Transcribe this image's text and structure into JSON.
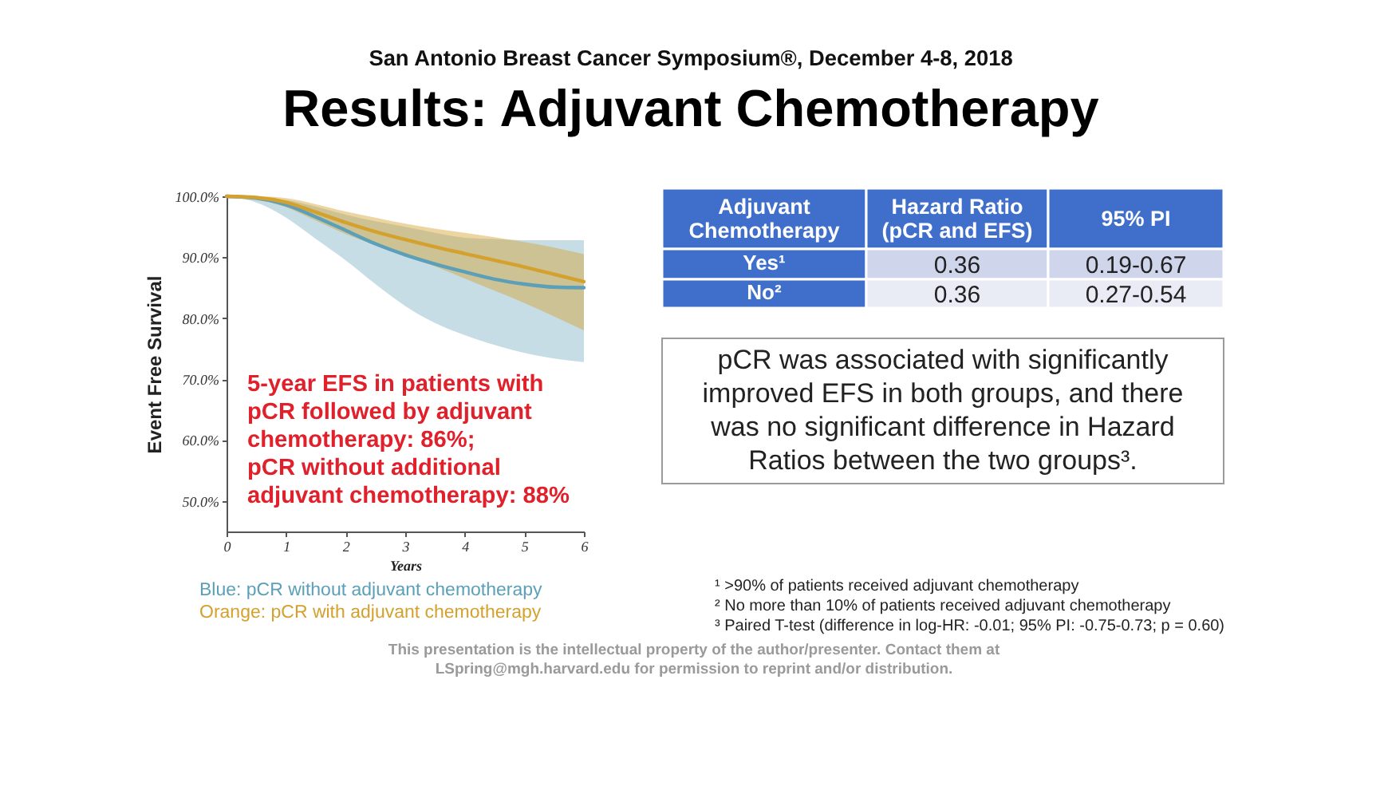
{
  "chart_data": [
    {
      "type": "line",
      "title": "Results: Adjuvant Chemotherapy",
      "subtitle": "San Antonio Breast Cancer Symposium®, December 4-8, 2018",
      "xlabel": "Years",
      "ylabel": "Event Free Survival",
      "x": [
        0,
        0.5,
        1,
        1.5,
        2,
        2.5,
        3,
        3.5,
        4,
        4.5,
        5,
        5.5,
        6
      ],
      "series": [
        {
          "name": "Blue: pCR without adjuvant chemotherapy",
          "color": "#5b9fb8",
          "values": [
            100,
            99.7,
            98.6,
            96.6,
            94.4,
            92.2,
            90.4,
            88.9,
            87.6,
            86.4,
            85.6,
            85.1,
            85.0
          ],
          "lower": [
            100,
            99.0,
            96.5,
            93.0,
            89.5,
            85.6,
            82.0,
            79.2,
            77.2,
            75.6,
            74.3,
            73.4,
            72.8
          ],
          "upper": [
            100,
            99.9,
            99.4,
            98.3,
            97.0,
            95.9,
            95.0,
            94.0,
            93.2,
            93.0,
            92.8,
            92.8,
            92.8
          ]
        },
        {
          "name": "Orange: pCR with adjuvant chemotherapy",
          "color": "#d4a12e",
          "values": [
            100,
            99.8,
            99.0,
            97.4,
            95.7,
            94.2,
            92.9,
            91.7,
            90.6,
            89.5,
            88.4,
            87.2,
            86.0
          ],
          "lower": [
            100,
            99.5,
            98.2,
            96.0,
            93.8,
            92.0,
            90.3,
            88.5,
            86.5,
            84.5,
            82.5,
            80.3,
            78.0
          ],
          "upper": [
            100,
            100,
            99.7,
            98.7,
            97.5,
            96.5,
            95.5,
            94.7,
            94.0,
            93.3,
            92.5,
            91.6,
            90.5
          ]
        }
      ],
      "xlim": [
        0,
        6
      ],
      "xticks": [
        0,
        1,
        2,
        3,
        4,
        5,
        6
      ],
      "ylim": [
        45,
        100
      ],
      "yticks": [
        {
          "value": 50,
          "label": "50.0%"
        },
        {
          "value": 60,
          "label": "60.0%"
        },
        {
          "value": 70,
          "label": "70.0%"
        },
        {
          "value": 80,
          "label": "80.0%"
        },
        {
          "value": 90,
          "label": "90.0%"
        },
        {
          "value": 100,
          "label": "100.0%"
        }
      ],
      "legend": "bottom",
      "annotations": [
        "5-year EFS in patients with pCR followed by adjuvant chemotherapy: 86%;",
        "pCR without additional adjuvant chemotherapy: 88%"
      ]
    },
    {
      "type": "other",
      "annotations": [
        "Adjuvant Chemotherapy",
        "Hazard Ratio (pCR and EFS)",
        "95% PI",
        "Yes¹",
        "0.36",
        "0.19-0.67",
        "No²",
        "0.36",
        "0.27-0.54",
        "pCR was associated with significantly improved EFS in both groups, and there was no significant difference in Hazard Ratios between the two groups³.",
        "¹ >90% of patients received adjuvant chemotherapy",
        "² No more than 10% of patients received adjuvant chemotherapy",
        "³ Paired T-test (difference in log-HR: -0.01; 95% PI: -0.75-0.73; p = 0.60)",
        "This presentation is the intellectual property of the author/presenter. Contact them at LSpring@mgh.harvard.edu for permission to reprint and/or distribution."
      ]
    }
  ]
}
